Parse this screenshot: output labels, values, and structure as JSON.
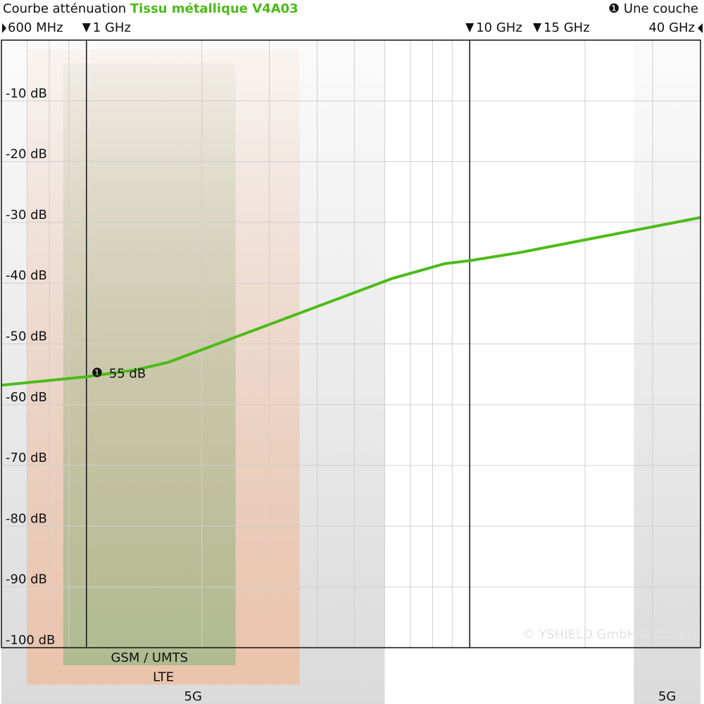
{
  "chart_data": {
    "type": "line",
    "title": "Courbe atténuation",
    "subtitle": "Tissu métallique V4A03",
    "x": [
      0.6,
      1.0,
      1.34,
      1.64,
      6.3,
      8.6,
      10,
      13.4,
      40
    ],
    "series": [
      {
        "name": "Une couche",
        "marker": "❶",
        "color": "#4cbb17",
        "values": [
          -56.8,
          -55.4,
          -54.3,
          -53,
          -39.2,
          -36.8,
          -36.3,
          -35,
          -29.2
        ]
      }
    ],
    "xscale": "log",
    "xlim": [
      0.6,
      40
    ],
    "xticks": [
      {
        "value": 0.6,
        "label": "600 MHz"
      },
      {
        "value": 1,
        "label": "1 GHz"
      },
      {
        "value": 10,
        "label": "10 GHz"
      },
      {
        "value": 15,
        "label": "15 GHz"
      },
      {
        "value": 40,
        "label": "40 GHz"
      }
    ],
    "xgrid": [
      0.7,
      0.8,
      0.9,
      1,
      2,
      3,
      4,
      5,
      6,
      7,
      8,
      9,
      10,
      20,
      30
    ],
    "ylim": [
      -100,
      0
    ],
    "yticks": [
      {
        "value": -10,
        "label": "-10 dB"
      },
      {
        "value": -20,
        "label": "-20 dB"
      },
      {
        "value": -30,
        "label": "-30 dB"
      },
      {
        "value": -40,
        "label": "-40 dB"
      },
      {
        "value": -50,
        "label": "-50 dB"
      },
      {
        "value": -60,
        "label": "-60 dB"
      },
      {
        "value": -70,
        "label": "-70 dB"
      },
      {
        "value": -80,
        "label": "-80 dB"
      },
      {
        "value": -90,
        "label": "-90 dB"
      },
      {
        "value": -100,
        "label": "-100 dB"
      }
    ],
    "grid": true,
    "annotations": [
      {
        "marker": "❶",
        "text": "55 dB",
        "x": 1,
        "y": -55
      }
    ],
    "bands": [
      {
        "label": "5G",
        "from": 0.6,
        "to": 6,
        "color": "#d4d4d4"
      },
      {
        "label": "5G",
        "from": 26.8,
        "to": 40,
        "color": "#d4d4d4"
      },
      {
        "label": "LTE",
        "from": 0.7,
        "to": 3.6,
        "color": "#eebfa3"
      },
      {
        "label": "GSM / UMTS",
        "from": 0.87,
        "to": 2.45,
        "color": "#a6b98c"
      }
    ],
    "copyright": "© YSHIELD GmbH & Co. KG"
  }
}
